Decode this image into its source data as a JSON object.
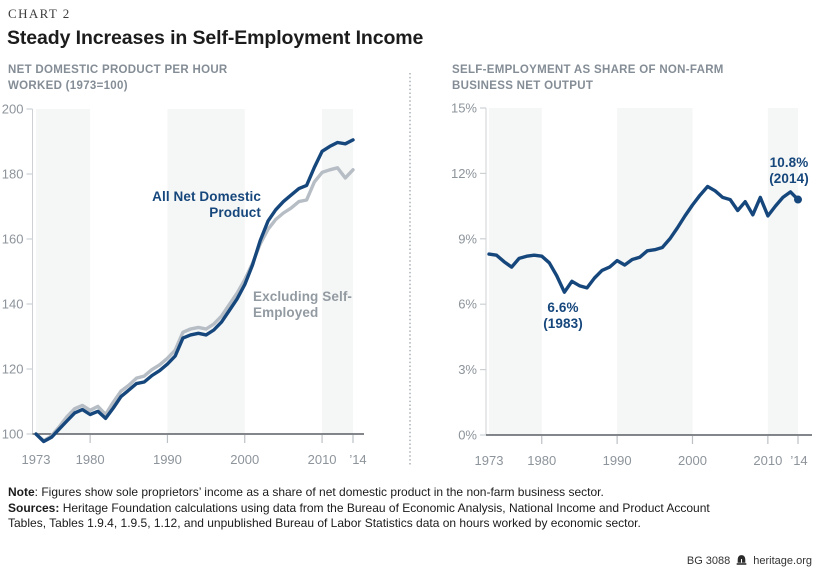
{
  "header": {
    "kicker": "CHART 2",
    "title": "Steady Increases in Self-Employment Income"
  },
  "chart_data": [
    {
      "type": "line",
      "title": "NET DOMESTIC PRODUCT PER HOUR WORKED (1973=100)",
      "x_start": 1973,
      "x_end": 2014,
      "ylim": [
        100,
        200
      ],
      "grid": false,
      "yticks": {
        "values": [
          100,
          120,
          140,
          160,
          180,
          200
        ],
        "labels": [
          "100",
          "120",
          "140",
          "160",
          "180",
          "200"
        ]
      },
      "xticks": [
        {
          "year": 1973,
          "label": "1973"
        },
        {
          "year": 1980,
          "label": "1980"
        },
        {
          "year": 1990,
          "label": "1990"
        },
        {
          "year": 2000,
          "label": "2000"
        },
        {
          "year": 2010,
          "label": "2010"
        },
        {
          "year": 2014,
          "label": "’14"
        }
      ],
      "series": [
        {
          "name": "All Net Domestic Product",
          "color": "#16477c",
          "values": [
            100,
            97.7,
            99,
            101.5,
            104,
            106.5,
            107.5,
            106,
            107,
            104.8,
            108,
            111.5,
            113.5,
            115.5,
            116,
            118,
            119.5,
            121.5,
            124,
            129.5,
            130.5,
            131,
            130.5,
            132,
            134.5,
            138,
            141.5,
            146,
            152,
            159.5,
            165.5,
            169,
            171.5,
            173.5,
            175.5,
            176.5,
            182,
            187,
            188.5,
            189.7,
            189.3,
            190.5
          ]
        },
        {
          "name": "Excluding Self-Employed",
          "color": "#b6bdc4",
          "values": [
            100,
            97.9,
            99.4,
            102.2,
            105.3,
            107.8,
            108.8,
            107.3,
            108.5,
            106,
            109.8,
            113.2,
            115,
            117.2,
            117.8,
            119.8,
            121.3,
            123.3,
            125.8,
            131.3,
            132.3,
            132.8,
            132.3,
            133.8,
            136.3,
            139.8,
            143.3,
            147.5,
            152.5,
            158.5,
            163,
            166,
            168,
            169.5,
            171.5,
            172,
            177.5,
            180.5,
            181.3,
            181.9,
            178.8,
            181.3
          ]
        }
      ]
    },
    {
      "type": "line",
      "title": "SELF-EMPLOYMENT AS SHARE OF NON-FARM BUSINESS NET OUTPUT",
      "x_start": 1973,
      "x_end": 2014,
      "ylim": [
        0,
        15
      ],
      "grid": false,
      "yticks": {
        "values": [
          0,
          3,
          6,
          9,
          12,
          15
        ],
        "labels": [
          "0%",
          "3%",
          "6%",
          "9%",
          "12%",
          "15%"
        ]
      },
      "xticks": [
        {
          "year": 1973,
          "label": "1973"
        },
        {
          "year": 1980,
          "label": "1980"
        },
        {
          "year": 1990,
          "label": "1990"
        },
        {
          "year": 2000,
          "label": "2000"
        },
        {
          "year": 2010,
          "label": "2010"
        },
        {
          "year": 2014,
          "label": "’14"
        }
      ],
      "series": [
        {
          "color": "#16477c",
          "end_dot": true,
          "values": [
            8.3,
            8.25,
            7.95,
            7.7,
            8.1,
            8.2,
            8.25,
            8.2,
            7.9,
            7.3,
            6.55,
            7.05,
            6.85,
            6.75,
            7.2,
            7.55,
            7.7,
            8.0,
            7.8,
            8.05,
            8.15,
            8.45,
            8.5,
            8.6,
            9.0,
            9.5,
            10.05,
            10.55,
            11.0,
            11.4,
            11.2,
            10.9,
            10.8,
            10.3,
            10.7,
            10.1,
            10.9,
            10.05,
            10.5,
            10.9,
            11.15,
            10.8
          ]
        }
      ],
      "annotations": [
        {
          "text": "6.6% (1983)"
        },
        {
          "text": "10.8% (2014)"
        }
      ]
    }
  ],
  "notes": {
    "note_label": "Note",
    "note_rest": ": Figures show sole proprietors’ income as a share of net domestic product in the non-farm business sector.",
    "sources_label": "Sources:",
    "sources_rest": " Heritage Foundation calculations using data from the Bureau of Economic Analysis, National Income and Product Account Tables, Tables 1.9.4, 1.9.5, 1.12, and unpublished Bureau of Labor Statistics data on hours worked by economic sector."
  },
  "footer": {
    "report_id": "BG 3088",
    "site": "heritage.org"
  }
}
